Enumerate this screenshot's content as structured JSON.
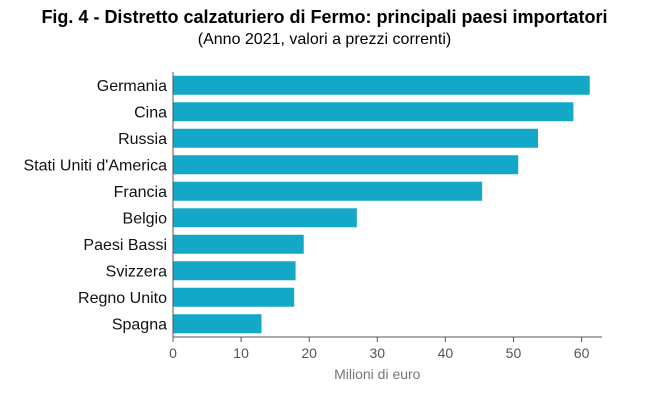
{
  "header": {
    "title": "Fig. 4 - Distretto calzaturiero di Fermo: principali paesi importatori",
    "subtitle": "(Anno 2021, valori a prezzi correnti)"
  },
  "chart_data": {
    "type": "bar",
    "orientation": "horizontal",
    "categories": [
      "Germania",
      "Cina",
      "Russia",
      "Stati Uniti d'America",
      "Francia",
      "Belgio",
      "Paesi Bassi",
      "Svizzera",
      "Regno Unito",
      "Spagna"
    ],
    "values": [
      61.2,
      58.8,
      53.6,
      50.7,
      45.4,
      27.0,
      19.2,
      18.0,
      17.8,
      13.0
    ],
    "xlabel": "Milioni di euro",
    "ylabel": "",
    "xlim": [
      0,
      63
    ],
    "xticks": [
      0,
      10,
      20,
      30,
      40,
      50,
      60
    ],
    "bar_color": "#13a8c8",
    "grid": false,
    "legend": "none"
  }
}
